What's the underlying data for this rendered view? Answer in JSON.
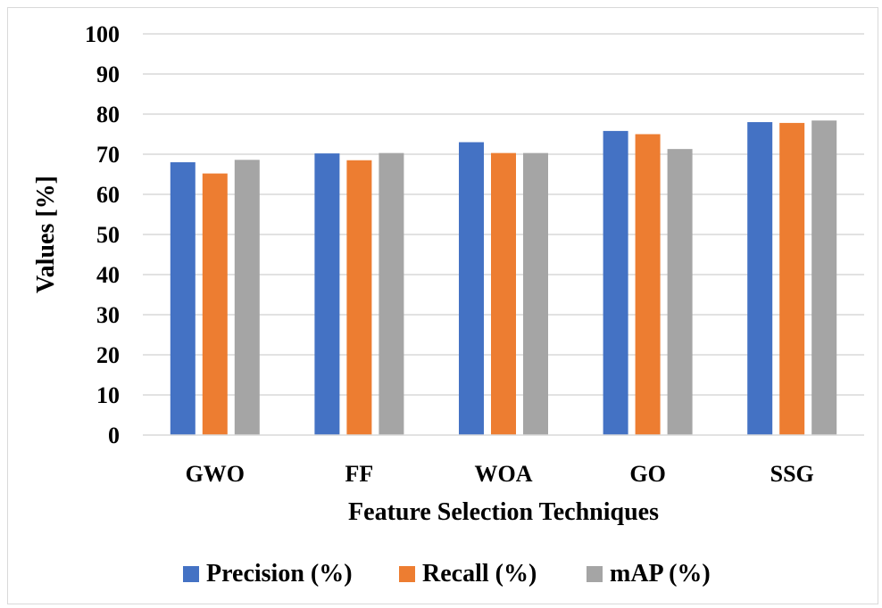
{
  "chart_data": {
    "type": "bar",
    "xlabel": "Feature Selection Techniques",
    "ylabel": "Values [%]",
    "ylim": [
      0,
      100
    ],
    "ytick_step": 10,
    "grid": true,
    "legend_position": "bottom",
    "categories": [
      "GWO",
      "FF",
      "WOA",
      "GO",
      "SSG"
    ],
    "series": [
      {
        "name": "Precision (%)",
        "color": "#4472c4",
        "values": [
          68,
          70.2,
          73,
          75.8,
          78
        ]
      },
      {
        "name": "Recall (%)",
        "color": "#ed7d31",
        "values": [
          65.2,
          68.5,
          70.3,
          75,
          77.8
        ]
      },
      {
        "name": "mAP (%)",
        "color": "#a5a5a5",
        "values": [
          68.6,
          70.3,
          70.3,
          71.3,
          78.4
        ]
      }
    ]
  }
}
